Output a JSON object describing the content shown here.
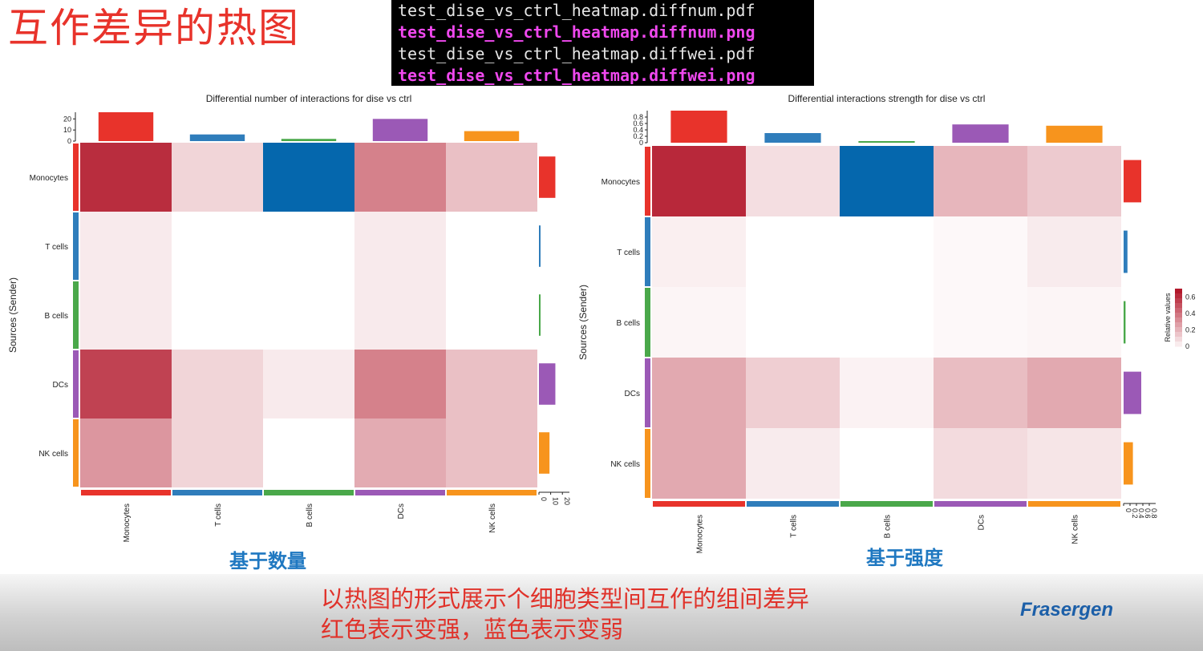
{
  "slide": {
    "title": "互作差异的热图",
    "terminal_lines": [
      {
        "text": "test_dise_vs_ctrl_heatmap.diffnum.pdf",
        "color": "plain"
      },
      {
        "text": "test_dise_vs_ctrl_heatmap.diffnum.png",
        "color": "magenta"
      },
      {
        "text": "test_dise_vs_ctrl_heatmap.diffwei.pdf",
        "color": "plain"
      },
      {
        "text": "test_dise_vs_ctrl_heatmap.diffwei.png",
        "color": "magenta"
      }
    ],
    "footer_line1": "以热图的形式展示个细胞类型间互作的组间差异",
    "footer_line2": "红色表示变强，蓝色表示变弱",
    "brand": "Frasergen"
  },
  "chart_data": [
    {
      "type": "heatmap",
      "title": "Differential number of interactions for dise vs ctrl",
      "ylabel": "Sources (Sender)",
      "caption": "基于数量",
      "rows": [
        "Monocytes",
        "T cells",
        "B cells",
        "DCs",
        "NK cells"
      ],
      "cols": [
        "Monocytes",
        "T cells",
        "B cells",
        "DCs",
        "NK cells"
      ],
      "values": [
        [
          10,
          2,
          -8,
          6,
          3
        ],
        [
          1,
          0,
          0,
          1,
          0
        ],
        [
          1,
          0,
          0,
          1,
          0
        ],
        [
          9,
          2,
          1,
          6,
          3
        ],
        [
          5,
          2,
          0,
          4,
          3
        ]
      ],
      "vmax": 11,
      "vmin": -8,
      "col_totals": [
        26,
        6,
        2,
        20,
        9
      ],
      "row_totals": [
        14,
        1,
        1,
        14,
        9
      ],
      "bar_ticks": [
        "0",
        "10",
        "20"
      ],
      "bar_max": 26,
      "colors": [
        "#e8332b",
        "#2f7dbb",
        "#4aa84a",
        "#9b59b6",
        "#f7941d"
      ]
    },
    {
      "type": "heatmap",
      "title": "Differential interactions strength for dise vs ctrl",
      "ylabel": "Sources (Sender)",
      "caption": "基于强度",
      "rows": [
        "Monocytes",
        "T cells",
        "B cells",
        "DCs",
        "NK cells"
      ],
      "cols": [
        "Monocytes",
        "T cells",
        "B cells",
        "DCs",
        "NK cells"
      ],
      "values": [
        [
          0.65,
          0.1,
          -0.5,
          0.22,
          0.16
        ],
        [
          0.05,
          0,
          0,
          0.02,
          0.06
        ],
        [
          0.03,
          0,
          0,
          0.02,
          0.03
        ],
        [
          0.26,
          0.15,
          0.04,
          0.2,
          0.26
        ],
        [
          0.26,
          0.06,
          0,
          0.11,
          0.08
        ]
      ],
      "vmax": 0.7,
      "vmin": -0.5,
      "col_totals": [
        1.0,
        0.3,
        0.05,
        0.57,
        0.53
      ],
      "row_totals": [
        0.55,
        0.12,
        0.06,
        0.55,
        0.29
      ],
      "bar_ticks": [
        "0",
        "0.2",
        "0.4",
        "0.6",
        "0.8"
      ],
      "bar_max": 1.0,
      "legend": {
        "title": "Relative values",
        "ticks": [
          "0",
          "0.2",
          "0.4",
          "0.6"
        ]
      },
      "colors": [
        "#e8332b",
        "#2f7dbb",
        "#4aa84a",
        "#9b59b6",
        "#f7941d"
      ]
    }
  ]
}
